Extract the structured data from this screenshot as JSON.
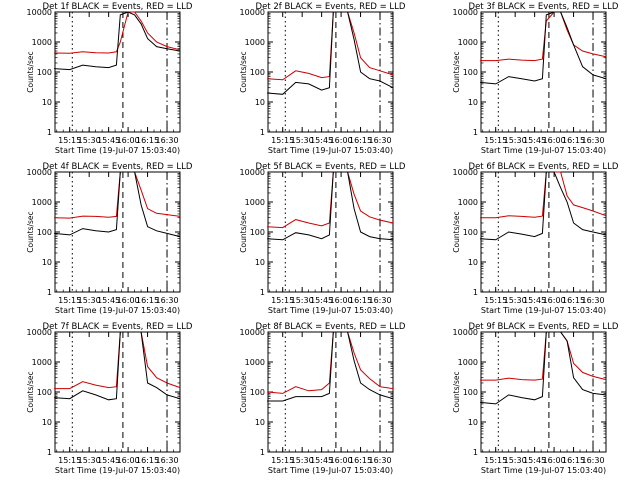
{
  "colors": {
    "events": "#000000",
    "lld": "#cc0000",
    "frame": "#000000"
  },
  "chart_data": [
    {
      "type": "line",
      "title": "Det 1f BLACK = Events, RED = LLD",
      "ylabel": "Counts/sec",
      "xlabel": "Start Time (19-Jul-07 15:03:40)",
      "x_tick_labels": [
        "15:15",
        "15:30",
        "15:45",
        "16:00",
        "16:15",
        "16:30"
      ],
      "y_tick_labels": [
        "1",
        "10",
        "100",
        "1000",
        "10000"
      ],
      "ylim": [
        1,
        10000
      ],
      "yscale": "log",
      "x": [
        "15:03",
        "15:15",
        "15:25",
        "15:35",
        "15:45",
        "15:51",
        "15:54",
        "16:00",
        "16:05",
        "16:10",
        "16:15",
        "16:22",
        "16:30",
        "16:40"
      ],
      "series": [
        {
          "values": [
            130,
            120,
            170,
            150,
            140,
            170,
            8000,
            10000,
            8000,
            4000,
            1300,
            700,
            600,
            500
          ]
        },
        {
          "values": [
            80,
            75,
            110,
            95,
            85,
            110,
            5000,
            10000,
            5000,
            3000,
            1000,
            500,
            400,
            300
          ]
        },
        {
          "values": [
            430,
            420,
            470,
            440,
            430,
            470,
            1000,
            10000,
            10000,
            5000,
            2000,
            1000,
            700,
            550
          ]
        },
        {
          "values": [
            110,
            100,
            150,
            130,
            120,
            180,
            10000,
            10000,
            10000,
            3000,
            1100,
            600,
            500,
            420
          ]
        },
        {
          "values": [
            70,
            65,
            95,
            85,
            75,
            100,
            2000,
            10000,
            3000,
            1200,
            600,
            400,
            300,
            250
          ]
        }
      ]
    },
    {
      "type": "line",
      "title": "Det 2f BLACK = Events, RED = LLD",
      "ylabel": "Counts/sec",
      "xlabel": "Start Time (19-Jul-07 15:03:40)",
      "x_tick_labels": [
        "15:15",
        "15:30",
        "15:45",
        "16:00",
        "16:15",
        "16:30"
      ],
      "y_tick_labels": [
        "1",
        "10",
        "100",
        "1000",
        "10000"
      ],
      "ylim": [
        1,
        10000
      ],
      "yscale": "log"
    },
    {
      "type": "line",
      "title": "Det 3f BLACK = Events, RED = LLD",
      "ylabel": "Counts/sec",
      "xlabel": "Start Time (19-Jul-07 15:03:40)",
      "x_tick_labels": [
        "15:15",
        "15:30",
        "15:45",
        "16:00",
        "16:15",
        "16:30"
      ],
      "y_tick_labels": [
        "1",
        "10",
        "100",
        "1000",
        "10000"
      ],
      "ylim": [
        1,
        10000
      ],
      "yscale": "log"
    },
    {
      "type": "line",
      "title": "Det 4f BLACK = Events, RED = LLD",
      "ylabel": "Counts/sec",
      "xlabel": "Start Time (19-Jul-07 15:03:40)",
      "x_tick_labels": [
        "15:15",
        "15:30",
        "15:45",
        "16:00",
        "16:15",
        "16:30"
      ],
      "y_tick_labels": [
        "1",
        "10",
        "100",
        "1000",
        "10000"
      ],
      "ylim": [
        1,
        10000
      ],
      "yscale": "log"
    },
    {
      "type": "line",
      "title": "Det 5f BLACK = Events, RED = LLD",
      "ylabel": "Counts/sec",
      "xlabel": "Start Time (19-Jul-07 15:03:40)",
      "x_tick_labels": [
        "15:15",
        "15:30",
        "15:45",
        "16:00",
        "16:15",
        "16:30"
      ],
      "y_tick_labels": [
        "1",
        "10",
        "100",
        "1000",
        "10000"
      ],
      "ylim": [
        1,
        10000
      ],
      "yscale": "log"
    },
    {
      "type": "line",
      "title": "Det 6f BLACK = Events, RED = LLD",
      "ylabel": "Counts/sec",
      "xlabel": "Start Time (19-Jul-07 15:03:40)",
      "x_tick_labels": [
        "15:15",
        "15:30",
        "15:45",
        "16:00",
        "16:15",
        "16:30"
      ],
      "y_tick_labels": [
        "1",
        "10",
        "100",
        "1000",
        "10000"
      ],
      "ylim": [
        1,
        10000
      ],
      "yscale": "log"
    },
    {
      "type": "line",
      "title": "Det 7f BLACK = Events, RED = LLD",
      "ylabel": "Counts/sec",
      "xlabel": "Start Time (19-Jul-07 15:03:40)",
      "x_tick_labels": [
        "15:15",
        "15:30",
        "15:45",
        "16:00",
        "16:15",
        "16:30"
      ],
      "y_tick_labels": [
        "1",
        "10",
        "100",
        "1000",
        "10000"
      ],
      "ylim": [
        1,
        10000
      ],
      "yscale": "log"
    },
    {
      "type": "line",
      "title": "Det 8f BLACK = Events, RED = LLD",
      "ylabel": "Counts/sec",
      "xlabel": "Start Time (19-Jul-07 15:03:40)",
      "x_tick_labels": [
        "15:15",
        "15:30",
        "15:45",
        "16:00",
        "16:15",
        "16:30"
      ],
      "y_tick_labels": [
        "1",
        "10",
        "100",
        "1000",
        "10000"
      ],
      "ylim": [
        1,
        10000
      ],
      "yscale": "log"
    },
    {
      "type": "line",
      "title": "Det 9f BLACK = Events, RED = LLD",
      "ylabel": "Counts/sec",
      "xlabel": "Start Time (19-Jul-07 15:03:40)",
      "x_tick_labels": [
        "15:15",
        "15:30",
        "15:45",
        "16:00",
        "16:15",
        "16:30"
      ],
      "y_tick_labels": [
        "1",
        "10",
        "100",
        "1000",
        "10000"
      ],
      "ylim": [
        1,
        10000
      ],
      "yscale": "log"
    }
  ],
  "curves": [
    {
      "events": [
        130,
        120,
        170,
        150,
        140,
        170,
        8000,
        10000,
        8000,
        4000,
        1300,
        700,
        600,
        500
      ],
      "lld": [
        430,
        420,
        470,
        440,
        430,
        470,
        1000,
        10000,
        10000,
        5000,
        2000,
        1000,
        700,
        550
      ]
    },
    {
      "events": [
        20,
        18,
        45,
        40,
        25,
        30,
        10000,
        10000,
        10000,
        1200,
        100,
        60,
        50,
        30
      ],
      "lld": [
        60,
        55,
        110,
        90,
        65,
        70,
        10000,
        10000,
        10000,
        2000,
        300,
        140,
        110,
        80
      ]
    },
    {
      "events": [
        45,
        40,
        70,
        60,
        50,
        60,
        8000,
        10000,
        10000,
        3000,
        800,
        150,
        80,
        60
      ],
      "lld": [
        240,
        240,
        270,
        250,
        240,
        270,
        5000,
        10000,
        10000,
        2500,
        800,
        500,
        400,
        320
      ]
    },
    {
      "events": [
        90,
        80,
        130,
        110,
        100,
        120,
        10000,
        10000,
        10000,
        800,
        150,
        110,
        90,
        70
      ],
      "lld": [
        300,
        290,
        340,
        330,
        310,
        330,
        10000,
        10000,
        10000,
        2500,
        600,
        420,
        380,
        330
      ]
    },
    {
      "events": [
        60,
        55,
        95,
        80,
        60,
        80,
        10000,
        10000,
        10000,
        600,
        100,
        70,
        60,
        55
      ],
      "lld": [
        150,
        140,
        260,
        200,
        160,
        200,
        10000,
        10000,
        10000,
        1800,
        500,
        320,
        250,
        200
      ]
    },
    {
      "events": [
        60,
        55,
        100,
        85,
        70,
        90,
        10000,
        10000,
        3000,
        1000,
        200,
        120,
        100,
        80
      ],
      "lld": [
        300,
        300,
        350,
        330,
        310,
        340,
        10000,
        10000,
        10000,
        1600,
        800,
        650,
        500,
        350
      ]
    },
    {
      "events": [
        65,
        60,
        110,
        80,
        55,
        60,
        10000,
        10000,
        10000,
        10000,
        200,
        140,
        80,
        60
      ],
      "lld": [
        130,
        130,
        220,
        170,
        140,
        150,
        10000,
        10000,
        10000,
        10000,
        700,
        300,
        200,
        140
      ]
    },
    {
      "events": [
        50,
        50,
        70,
        70,
        70,
        90,
        10000,
        10000,
        10000,
        1100,
        200,
        120,
        80,
        60
      ],
      "lld": [
        100,
        90,
        150,
        110,
        120,
        200,
        10000,
        10000,
        10000,
        2000,
        550,
        280,
        150,
        130
      ]
    },
    {
      "events": [
        45,
        40,
        80,
        65,
        55,
        70,
        10000,
        10000,
        10000,
        5000,
        300,
        120,
        90,
        80
      ],
      "lld": [
        250,
        250,
        290,
        260,
        250,
        270,
        10000,
        10000,
        10000,
        5000,
        900,
        450,
        330,
        260
      ]
    }
  ]
}
